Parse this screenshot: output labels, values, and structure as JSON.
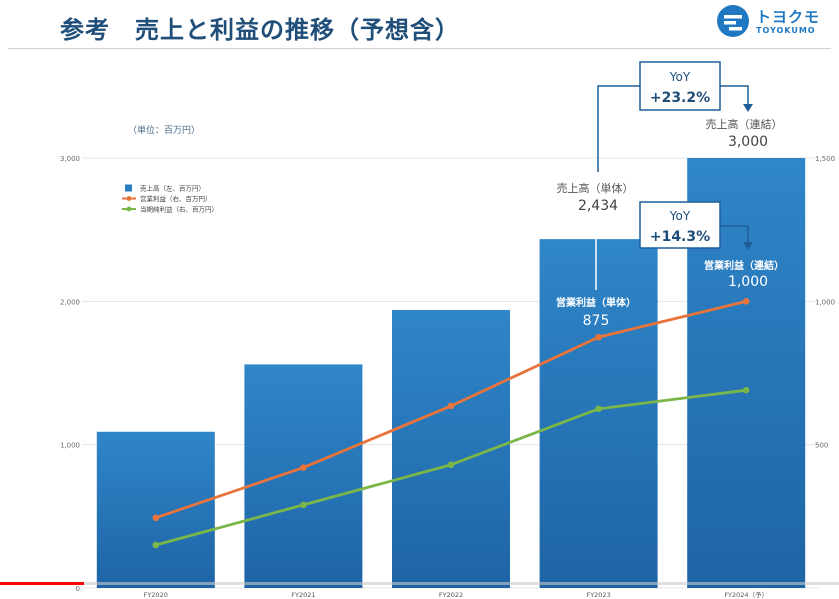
{
  "page": {
    "title": "参考　売上と利益の推移（予想含）",
    "logo_text_jp": "トヨクモ",
    "logo_text_en": "TOYOKUMO",
    "brand_color": "#1f78c1"
  },
  "video": {
    "progress": 0.1
  },
  "chart_data": {
    "type": "bar",
    "categories": [
      "FY2020",
      "FY2021",
      "FY2022",
      "FY2023",
      "FY2024（予）"
    ],
    "unit_label": "（単位：百万円）",
    "y_left": {
      "ticks": [
        0,
        1000,
        2000,
        3000
      ],
      "tick_labels": [
        "0",
        "1,000",
        "2,000",
        "3,000"
      ],
      "range": [
        0,
        3000
      ]
    },
    "y_right": {
      "ticks": [
        500,
        1000,
        1500
      ],
      "tick_labels": [
        "500",
        "1,000",
        "1,500"
      ],
      "range": [
        0,
        1500
      ]
    },
    "grid": true,
    "legend_position": "top-left",
    "series": [
      {
        "name": "売上高（左、百万円）",
        "kind": "bar",
        "axis": "left",
        "color": "#2b7fc1",
        "values": [
          1090,
          1560,
          1940,
          2434,
          3000
        ]
      },
      {
        "name": "営業利益（右、百万円）",
        "kind": "line",
        "axis": "right",
        "color": "#e8743b",
        "values": [
          245,
          420,
          635,
          875,
          1000
        ]
      },
      {
        "name": "当期純利益（右、百万円）",
        "kind": "line",
        "axis": "right",
        "color": "#7ab648",
        "values": [
          150,
          290,
          430,
          625,
          690
        ]
      }
    ],
    "annotations": {
      "sales_2023": {
        "label": "売上高（単体）",
        "value": "2,434"
      },
      "sales_2024": {
        "label": "売上高（連結）",
        "value": "3,000"
      },
      "op_2023": {
        "label": "営業利益（単体）",
        "value": "875"
      },
      "op_2024": {
        "label": "営業利益（連結）",
        "value": "1,000"
      },
      "yoy_sales": {
        "label": "YoY",
        "value": "+23.2%"
      },
      "yoy_op": {
        "label": "YoY",
        "value": "+14.3%"
      }
    }
  }
}
